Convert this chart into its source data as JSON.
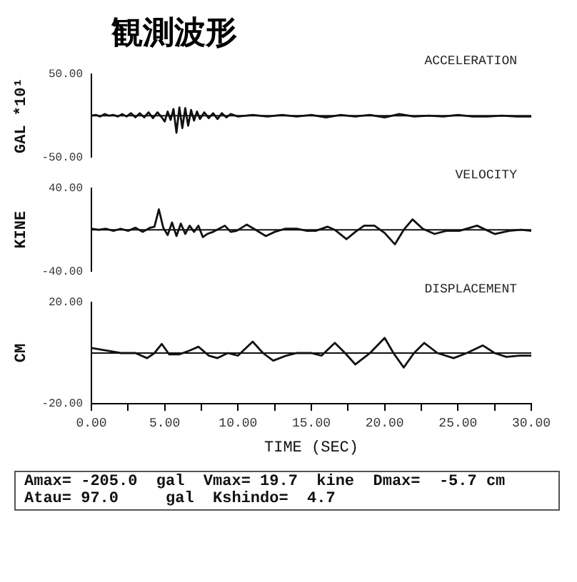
{
  "chart_data": [
    {
      "type": "line",
      "title": "観測波形",
      "ylabel": "GAL *10¹",
      "annotations": [
        "ACCELERATION"
      ],
      "color": "#111111",
      "marker": "none",
      "legend": false,
      "grid": false,
      "tick_labels": "y",
      "xlim": [
        0,
        30
      ],
      "x": [
        0,
        0.3,
        0.6,
        0.9,
        1.2,
        1.5,
        1.8,
        2.1,
        2.4,
        2.7,
        3.0,
        3.3,
        3.6,
        3.9,
        4.2,
        4.5,
        4.8,
        5.0,
        5.2,
        5.4,
        5.6,
        5.8,
        6.0,
        6.2,
        6.4,
        6.6,
        6.8,
        7.0,
        7.2,
        7.4,
        7.7,
        8.0,
        8.3,
        8.6,
        8.9,
        9.2,
        9.5,
        10,
        11,
        12,
        13,
        14,
        15,
        16,
        17,
        18,
        19,
        20,
        21,
        22,
        23,
        24,
        25,
        26,
        27,
        28,
        29,
        30
      ],
      "values": [
        0,
        1,
        -1,
        2,
        0,
        1,
        -1,
        2,
        -1,
        3,
        -2,
        3,
        -2,
        4,
        -3,
        4,
        -2,
        -7,
        5,
        -5,
        8,
        -20.5,
        10,
        -15,
        9,
        -12,
        7,
        -6,
        5,
        -4,
        4,
        -3,
        3,
        -4,
        3,
        -2,
        2,
        -1,
        1,
        -1,
        1,
        -1,
        1,
        -2,
        1,
        -1,
        1,
        -2,
        2,
        -1,
        0,
        -1,
        1,
        -1,
        -1,
        0,
        -1,
        -1
      ],
      "ylim": [
        -50,
        50
      ],
      "yticks": [
        {
          "value": -50,
          "label": "-50.00"
        },
        {
          "value": 0,
          "label": null
        },
        {
          "value": 50,
          "label": "50.00"
        }
      ],
      "ref_lines": [
        {
          "axis": "y",
          "value": 0,
          "color": "#111111"
        }
      ]
    },
    {
      "type": "line",
      "ylabel": "KINE",
      "annotations": [
        "VELOCITY"
      ],
      "color": "#111111",
      "marker": "none",
      "legend": false,
      "grid": false,
      "tick_labels": "y",
      "xlim": [
        0,
        30
      ],
      "x": [
        0,
        0.5,
        1,
        1.5,
        2,
        2.5,
        3,
        3.5,
        4,
        4.3,
        4.6,
        4.9,
        5.2,
        5.5,
        5.8,
        6.1,
        6.4,
        6.7,
        7.0,
        7.3,
        7.6,
        7.9,
        8.3,
        8.7,
        9.1,
        9.5,
        9.9,
        10.6,
        11.2,
        11.9,
        12.5,
        13.2,
        14,
        14.7,
        15.3,
        16.1,
        16.6,
        17.4,
        18,
        18.6,
        19.3,
        20,
        20.7,
        21.3,
        21.9,
        22.6,
        23.4,
        24.2,
        25.1,
        26.3,
        27.5,
        28.5,
        29.3,
        30
      ],
      "values": [
        1,
        0,
        1,
        -1,
        1,
        -1,
        2,
        -2,
        2,
        3,
        19.7,
        2,
        -5,
        7,
        -6,
        6,
        -4,
        4,
        -2,
        4,
        -7,
        -4,
        -2,
        1,
        4,
        -2,
        -1,
        5,
        0,
        -6,
        -2,
        1,
        1,
        -1,
        -1,
        3,
        0,
        -9,
        -2,
        4,
        4,
        -3,
        -14,
        0,
        10,
        1,
        -4,
        -1,
        -1,
        4,
        -4,
        -1,
        0,
        -1
      ],
      "ylim": [
        -40,
        40
      ],
      "yticks": [
        {
          "value": -40,
          "label": "-40.00"
        },
        {
          "value": 0,
          "label": null
        },
        {
          "value": 40,
          "label": "40.00"
        }
      ],
      "ref_lines": [
        {
          "axis": "y",
          "value": 0,
          "color": "#111111"
        }
      ]
    },
    {
      "type": "line",
      "ylabel": "CM",
      "xlabel": "TIME (SEC)",
      "annotations": [
        "DISPLACEMENT"
      ],
      "color": "#111111",
      "marker": "none",
      "legend": false,
      "grid": false,
      "xlim": [
        0,
        30
      ],
      "xticks": [
        {
          "value": 0,
          "label": "0.00"
        },
        {
          "value": 2.5,
          "label": null
        },
        {
          "value": 5,
          "label": "5.00"
        },
        {
          "value": 7.5,
          "label": null
        },
        {
          "value": 10,
          "label": "10.00"
        },
        {
          "value": 12.5,
          "label": null
        },
        {
          "value": 15,
          "label": "15.00"
        },
        {
          "value": 17.5,
          "label": null
        },
        {
          "value": 20,
          "label": "20.00"
        },
        {
          "value": 22.5,
          "label": null
        },
        {
          "value": 25,
          "label": "25.00"
        },
        {
          "value": 27.5,
          "label": null
        },
        {
          "value": 30,
          "label": "30.00"
        }
      ],
      "x": [
        0,
        1,
        2,
        3,
        3.8,
        4.3,
        4.8,
        5.3,
        6,
        6.7,
        7.3,
        8,
        8.6,
        9.3,
        10,
        11,
        11.7,
        12.4,
        13.3,
        14,
        15,
        15.7,
        16.6,
        17.3,
        18,
        19,
        20,
        20.6,
        21.3,
        22,
        22.7,
        23.6,
        24.7,
        25.6,
        26.7,
        27.5,
        28.3,
        29.2,
        30
      ],
      "values": [
        2,
        1,
        0,
        0,
        -2,
        0,
        3.6,
        -0.5,
        -0.5,
        1,
        2.5,
        -1,
        -2,
        0,
        -1,
        4.5,
        0,
        -3,
        -1,
        0,
        0,
        -1,
        4,
        0,
        -4.5,
        0,
        6,
        0,
        -5.7,
        0,
        4,
        0,
        -2,
        0,
        3,
        0,
        -1.5,
        -1,
        -1
      ],
      "ylim": [
        -20,
        20
      ],
      "yticks": [
        {
          "value": -20,
          "label": "-20.00"
        },
        {
          "value": 0,
          "label": null
        },
        {
          "value": 20,
          "label": "20.00"
        }
      ],
      "ref_lines": [
        {
          "axis": "y",
          "value": 0,
          "color": "#111111"
        }
      ]
    },
    {
      "type": "other",
      "annotations": [
        "Amax= -205.0  gal  Vmax= 19.7  kine  Dmax=  -5.7 cm",
        "Atau= 97.0     gal  Kshindo=  4.7"
      ]
    }
  ]
}
